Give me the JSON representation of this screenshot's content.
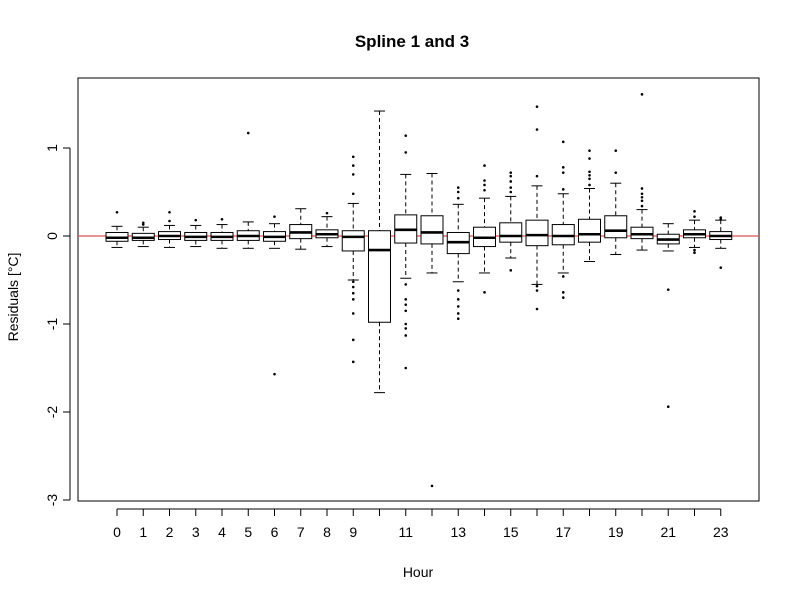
{
  "chart_data": {
    "type": "boxplot",
    "title": "Spline 1 and 3",
    "xlabel": "Hour",
    "ylabel": "Residuals [°C]",
    "ylim": [
      -3,
      1.8
    ],
    "yticks": [
      -3,
      -2,
      -1,
      0,
      1
    ],
    "xtick_labels_shown": [
      "0",
      "1",
      "2",
      "3",
      "4",
      "5",
      "6",
      "7",
      "8",
      "9",
      "11",
      "13",
      "15",
      "17",
      "19",
      "21",
      "23"
    ],
    "reference_line": {
      "y": 0,
      "color": "#e05050"
    },
    "grid": false,
    "boxes": [
      {
        "hour": 0,
        "lw": -0.13,
        "q1": -0.06,
        "med": -0.02,
        "q3": 0.04,
        "uw": 0.11,
        "out": [
          0.27
        ]
      },
      {
        "hour": 1,
        "lw": -0.12,
        "q1": -0.05,
        "med": -0.02,
        "q3": 0.03,
        "uw": 0.1,
        "out": [
          0.13,
          0.15
        ]
      },
      {
        "hour": 2,
        "lw": -0.13,
        "q1": -0.04,
        "med": 0.0,
        "q3": 0.05,
        "uw": 0.12,
        "out": [
          0.17,
          0.27
        ]
      },
      {
        "hour": 3,
        "lw": -0.12,
        "q1": -0.05,
        "med": -0.01,
        "q3": 0.04,
        "uw": 0.12,
        "out": [
          0.18
        ]
      },
      {
        "hour": 4,
        "lw": -0.14,
        "q1": -0.05,
        "med": -0.01,
        "q3": 0.04,
        "uw": 0.13,
        "out": [
          0.19
        ]
      },
      {
        "hour": 5,
        "lw": -0.14,
        "q1": -0.05,
        "med": 0.0,
        "q3": 0.06,
        "uw": 0.16,
        "out": [
          1.17
        ]
      },
      {
        "hour": 6,
        "lw": -0.14,
        "q1": -0.06,
        "med": -0.01,
        "q3": 0.05,
        "uw": 0.14,
        "out": [
          0.22,
          -1.57
        ]
      },
      {
        "hour": 7,
        "lw": -0.15,
        "q1": -0.03,
        "med": 0.04,
        "q3": 0.13,
        "uw": 0.31,
        "out": []
      },
      {
        "hour": 8,
        "lw": -0.12,
        "q1": -0.02,
        "med": 0.02,
        "q3": 0.07,
        "uw": 0.22,
        "out": [
          0.26
        ]
      },
      {
        "hour": 9,
        "lw": -0.5,
        "q1": -0.17,
        "med": -0.01,
        "q3": 0.06,
        "uw": 0.37,
        "out": [
          0.9,
          0.8,
          0.7,
          0.48,
          -0.52,
          -0.58,
          -0.65,
          -0.72,
          -0.88,
          -1.18,
          -1.43
        ]
      },
      {
        "hour": 10,
        "lw": -1.78,
        "q1": -0.98,
        "med": -0.16,
        "q3": 0.06,
        "uw": 1.42,
        "out": []
      },
      {
        "hour": 11,
        "lw": -0.48,
        "q1": -0.08,
        "med": 0.07,
        "q3": 0.24,
        "uw": 0.7,
        "out": [
          1.14,
          0.95,
          -0.55,
          -0.72,
          -0.78,
          -0.85,
          -1.0,
          -1.05,
          -1.13,
          -1.5
        ]
      },
      {
        "hour": 12,
        "lw": -0.42,
        "q1": -0.09,
        "med": 0.04,
        "q3": 0.23,
        "uw": 0.71,
        "out": [
          -2.84
        ]
      },
      {
        "hour": 13,
        "lw": -0.52,
        "q1": -0.2,
        "med": -0.07,
        "q3": 0.04,
        "uw": 0.36,
        "out": [
          0.55,
          0.5,
          0.43,
          -0.62,
          -0.72,
          -0.8,
          -0.88,
          -0.94
        ]
      },
      {
        "hour": 14,
        "lw": -0.42,
        "q1": -0.12,
        "med": -0.02,
        "q3": 0.1,
        "uw": 0.43,
        "out": [
          0.8,
          0.63,
          0.58,
          0.52,
          -0.64
        ]
      },
      {
        "hour": 15,
        "lw": -0.25,
        "q1": -0.07,
        "med": 0.0,
        "q3": 0.15,
        "uw": 0.45,
        "out": [
          0.72,
          0.68,
          0.62,
          0.55,
          0.5,
          -0.39
        ]
      },
      {
        "hour": 16,
        "lw": -0.55,
        "q1": -0.11,
        "med": 0.01,
        "q3": 0.18,
        "uw": 0.57,
        "out": [
          1.47,
          1.21,
          0.68,
          -0.57,
          -0.62,
          -0.83
        ]
      },
      {
        "hour": 17,
        "lw": -0.42,
        "q1": -0.1,
        "med": 0.0,
        "q3": 0.13,
        "uw": 0.48,
        "out": [
          1.07,
          0.78,
          0.72,
          0.53,
          -0.46,
          -0.64,
          -0.7
        ]
      },
      {
        "hour": 18,
        "lw": -0.29,
        "q1": -0.07,
        "med": 0.02,
        "q3": 0.19,
        "uw": 0.54,
        "out": [
          0.97,
          0.88,
          0.73,
          0.69,
          0.65,
          0.58
        ]
      },
      {
        "hour": 19,
        "lw": -0.21,
        "q1": -0.02,
        "med": 0.06,
        "q3": 0.23,
        "uw": 0.6,
        "out": [
          0.97,
          0.72
        ]
      },
      {
        "hour": 20,
        "lw": -0.16,
        "q1": -0.03,
        "med": 0.02,
        "q3": 0.1,
        "uw": 0.3,
        "out": [
          1.61,
          0.54,
          0.48,
          0.44,
          0.4,
          0.34
        ]
      },
      {
        "hour": 21,
        "lw": -0.17,
        "q1": -0.09,
        "med": -0.04,
        "q3": 0.02,
        "uw": 0.14,
        "out": [
          -0.61,
          -1.94
        ]
      },
      {
        "hour": 22,
        "lw": -0.13,
        "q1": -0.02,
        "med": 0.02,
        "q3": 0.07,
        "uw": 0.18,
        "out": [
          0.28,
          0.22,
          -0.16,
          -0.19
        ]
      },
      {
        "hour": 23,
        "lw": -0.14,
        "q1": -0.04,
        "med": 0.0,
        "q3": 0.05,
        "uw": 0.18,
        "out": [
          0.21,
          0.19,
          -0.36
        ]
      }
    ]
  }
}
